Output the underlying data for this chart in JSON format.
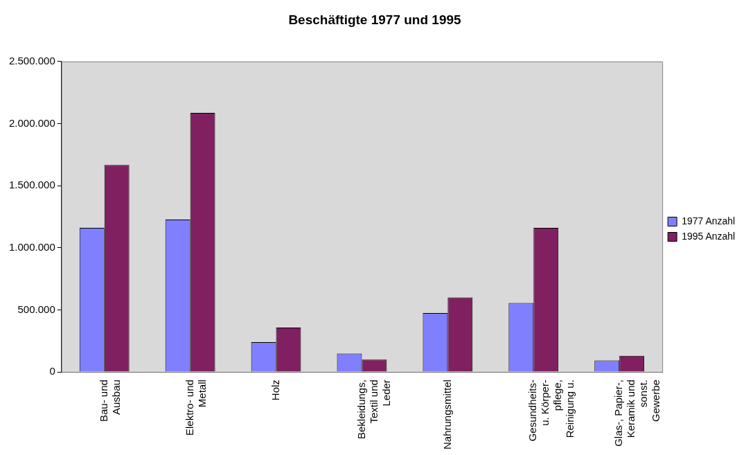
{
  "chart_data": {
    "type": "bar",
    "title": "Beschäftigte 1977 und 1995",
    "categories": [
      "Bau- und\nAusbau",
      "Elektro- und\nMetall",
      "Holz",
      "Bekleidungs,\nTextil und\nLeder",
      "Nahrungsmittel",
      "Gesundheits-\nu. Körper-\npflege,\nReinigung u.",
      "Glas-, Papier-,\nKeramik und\nsonst.\nGewerbe"
    ],
    "series": [
      {
        "name": "1977 Anzahl",
        "color": "#8080ff",
        "values": [
          1160000,
          1228000,
          240000,
          148000,
          475000,
          555000,
          93000
        ]
      },
      {
        "name": "1995 Anzahl",
        "color": "#802060",
        "values": [
          1667000,
          2086000,
          358000,
          99000,
          600000,
          1160000,
          130000
        ]
      }
    ],
    "ylim": [
      0,
      2500000
    ],
    "yticks": [
      {
        "value": 0,
        "label": "0"
      },
      {
        "value": 500000,
        "label": "500.000"
      },
      {
        "value": 1000000,
        "label": "1.000.000"
      },
      {
        "value": 1500000,
        "label": "1.500.000"
      },
      {
        "value": 2000000,
        "label": "2.000.000"
      },
      {
        "value": 2500000,
        "label": "2.500.000"
      }
    ],
    "grid": false,
    "legend": "right"
  }
}
